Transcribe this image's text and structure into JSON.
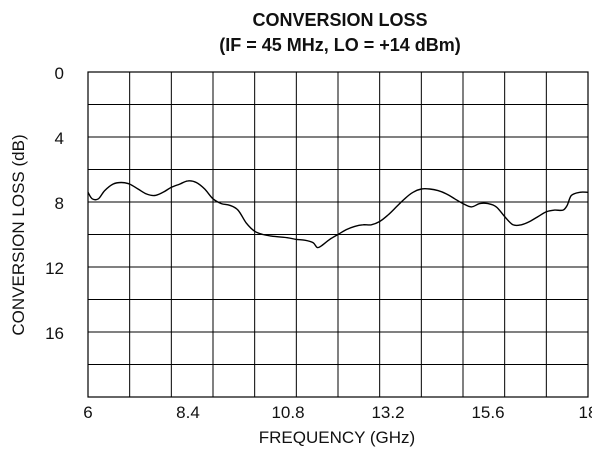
{
  "chart_data": {
    "type": "line",
    "title": "CONVERSION LOSS",
    "subtitle": "(IF = 45 MHz, LO = +14 dBm)",
    "xlabel": "FREQUENCY (GHz)",
    "ylabel": "CONVERSION LOSS (dB)",
    "xlim": [
      6,
      18
    ],
    "ylim": [
      0,
      20
    ],
    "y_inverted": true,
    "grid": true,
    "x_ticks": [
      6,
      8.4,
      10.8,
      13.2,
      15.6,
      18
    ],
    "x_tick_labels": [
      "6",
      "8.4",
      "10.8",
      "13.2",
      "15.6",
      "18"
    ],
    "y_ticks": [
      0,
      4,
      8,
      12,
      16
    ],
    "y_tick_labels": [
      "0",
      "4",
      "8",
      "12",
      "16"
    ],
    "series": [
      {
        "color": "#000000",
        "x": [
          6.0,
          6.1,
          6.25,
          6.4,
          6.6,
          6.8,
          7.0,
          7.2,
          7.4,
          7.6,
          7.8,
          8.0,
          8.2,
          8.4,
          8.6,
          8.8,
          9.0,
          9.2,
          9.4,
          9.6,
          9.8,
          10.0,
          10.2,
          10.4,
          10.6,
          10.8,
          11.0,
          11.2,
          11.4,
          11.5,
          11.6,
          11.8,
          12.0,
          12.2,
          12.4,
          12.6,
          12.8,
          13.0,
          13.2,
          13.4,
          13.6,
          13.8,
          14.0,
          14.2,
          14.4,
          14.6,
          14.8,
          15.0,
          15.2,
          15.4,
          15.6,
          15.8,
          16.0,
          16.2,
          16.4,
          16.6,
          16.8,
          17.0,
          17.2,
          17.4,
          17.5,
          17.6,
          17.8,
          18.0
        ],
        "values": [
          7.4,
          7.8,
          7.8,
          7.3,
          6.9,
          6.8,
          6.9,
          7.2,
          7.5,
          7.6,
          7.4,
          7.1,
          6.9,
          6.7,
          6.8,
          7.2,
          7.8,
          8.1,
          8.2,
          8.5,
          9.3,
          9.8,
          10.0,
          10.1,
          10.15,
          10.2,
          10.3,
          10.35,
          10.5,
          10.8,
          10.7,
          10.3,
          10.0,
          9.7,
          9.5,
          9.4,
          9.4,
          9.2,
          8.8,
          8.3,
          7.8,
          7.4,
          7.2,
          7.2,
          7.3,
          7.5,
          7.8,
          8.1,
          8.3,
          8.1,
          8.1,
          8.3,
          8.9,
          9.4,
          9.4,
          9.2,
          8.9,
          8.6,
          8.5,
          8.5,
          8.2,
          7.6,
          7.4,
          7.4
        ]
      }
    ]
  }
}
